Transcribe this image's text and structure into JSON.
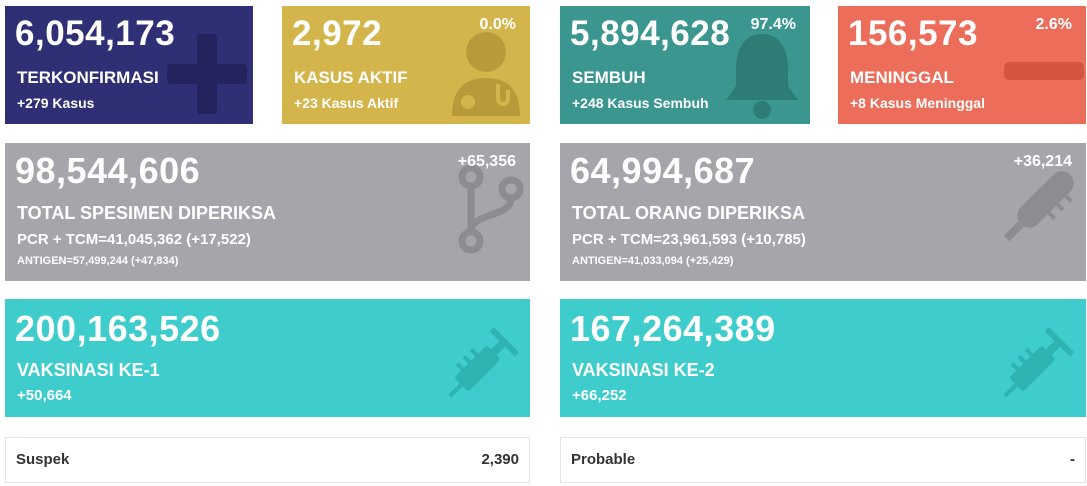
{
  "colors": {
    "confirmed": "#2e2f74",
    "active": "#d4b54b",
    "recovered": "#3a968e",
    "deaths": "#ec6d5a",
    "gray": "#a5a6ab",
    "vaccine": "#3ecccc"
  },
  "confirmed": {
    "value": "6,054,173",
    "label": "TERKONFIRMASI",
    "sub": "+279 Kasus",
    "icon": "plus-icon"
  },
  "active": {
    "value": "2,972",
    "label": "KASUS AKTIF",
    "sub": "+23 Kasus Aktif",
    "pct": "0.0%",
    "icon": "doctor-icon"
  },
  "recovered": {
    "value": "5,894,628",
    "label": "SEMBUH",
    "sub": "+248 Kasus Sembuh",
    "pct": "97.4%",
    "icon": "bell-icon"
  },
  "deaths": {
    "value": "156,573",
    "label": "MENINGGAL",
    "sub": "+8 Kasus Meninggal",
    "pct": "2.6%",
    "icon": "minus-icon"
  },
  "specimen": {
    "value": "98,544,606",
    "label": "TOTAL SPESIMEN DIPERIKSA",
    "pcr": "PCR + TCM=41,045,362 (+17,522)",
    "antigen": "ANTIGEN=57,499,244 (+47,834)",
    "delta": "+65,356",
    "icon": "branch-icon"
  },
  "people": {
    "value": "64,994,687",
    "label": "TOTAL ORANG DIPERIKSA",
    "pcr": "PCR + TCM=23,961,593 (+10,785)",
    "antigen": "ANTIGEN=41,033,094 (+25,429)",
    "delta": "+36,214",
    "icon": "thermometer-icon"
  },
  "vaccine1": {
    "value": "200,163,526",
    "label": "VAKSINASI KE-1",
    "sub": "+50,664",
    "icon": "syringe-icon"
  },
  "vaccine2": {
    "value": "167,264,389",
    "label": "VAKSINASI KE-2",
    "sub": "+66,252",
    "icon": "syringe-icon"
  },
  "suspek": {
    "label": "Suspek",
    "value": "2,390"
  },
  "probable": {
    "label": "Probable",
    "value": "-"
  }
}
